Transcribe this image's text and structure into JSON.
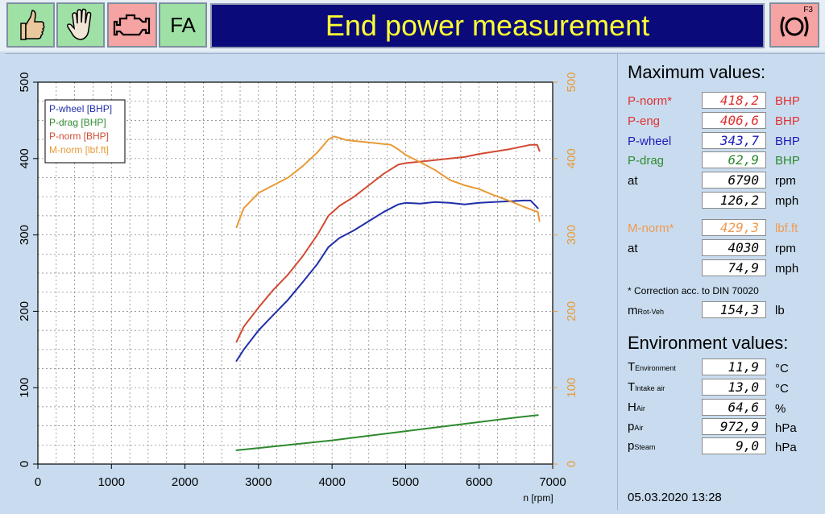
{
  "toolbar": {
    "buttons": [
      {
        "name": "thumbs-up-button",
        "icon": "thumbs-up-icon"
      },
      {
        "name": "hand-stop-button",
        "icon": "hand-icon"
      },
      {
        "name": "engine-button",
        "icon": "engine-icon"
      },
      {
        "name": "fa-button",
        "label": "FA"
      }
    ],
    "title": "End power measurement",
    "f3_label": "F3",
    "f3_icon": "brake-disc-icon",
    "colors": {
      "green_button": "#9fe1a5",
      "red_button": "#f6a3a3",
      "title_bg": "#0a0a7a",
      "title_fg": "#ffff33"
    }
  },
  "chart_data": {
    "type": "line",
    "xlabel": "n [rpm]",
    "xlim": [
      0,
      7000
    ],
    "ylim": [
      0,
      500
    ],
    "y2lim": [
      0,
      500
    ],
    "x_ticks": [
      "0",
      "1000",
      "2000",
      "3000",
      "4000",
      "5000",
      "6000",
      "7000"
    ],
    "y_ticks": [
      "0",
      "100",
      "200",
      "300",
      "400",
      "500"
    ],
    "y2_ticks": [
      "0",
      "100",
      "200",
      "300",
      "400",
      "500"
    ],
    "grid": true,
    "legend_position": "top-left",
    "series": [
      {
        "name": "P-wheel [BHP]",
        "color": "#1f2fa8",
        "axis": "left",
        "x": [
          2700,
          2800,
          3000,
          3200,
          3400,
          3600,
          3800,
          3950,
          4100,
          4300,
          4500,
          4700,
          4900,
          5000,
          5200,
          5400,
          5600,
          5800,
          6000,
          6200,
          6400,
          6600,
          6700,
          6800
        ],
        "y": [
          135,
          150,
          175,
          195,
          215,
          238,
          262,
          284,
          296,
          306,
          318,
          330,
          340,
          342,
          341,
          343,
          342,
          340,
          342,
          343,
          344,
          345,
          345,
          335
        ]
      },
      {
        "name": "P-drag [BHP]",
        "color": "#2e8a2e",
        "axis": "left",
        "x": [
          2700,
          3000,
          3500,
          4000,
          4500,
          5000,
          5500,
          6000,
          6500,
          6800
        ],
        "y": [
          18,
          21,
          26,
          31,
          37,
          43,
          49,
          55,
          61,
          64
        ]
      },
      {
        "name": "P-norm [BHP]",
        "color": "#d24a32",
        "axis": "left",
        "x": [
          2700,
          2800,
          3000,
          3200,
          3400,
          3600,
          3800,
          3950,
          4100,
          4300,
          4500,
          4700,
          4900,
          5000,
          5200,
          5400,
          5600,
          5800,
          6000,
          6200,
          6400,
          6600,
          6700,
          6790,
          6820
        ],
        "y": [
          160,
          180,
          205,
          228,
          248,
          272,
          300,
          325,
          338,
          350,
          365,
          380,
          392,
          394,
          396,
          398,
          400,
          402,
          406,
          409,
          412,
          416,
          418,
          418,
          410
        ]
      },
      {
        "name": "M-norm [lbf.ft]",
        "color": "#e89a38",
        "axis": "right",
        "x": [
          2700,
          2800,
          3000,
          3200,
          3400,
          3600,
          3800,
          3950,
          4030,
          4200,
          4400,
          4600,
          4800,
          4900,
          5000,
          5200,
          5400,
          5600,
          5800,
          6000,
          6200,
          6400,
          6600,
          6800,
          6820
        ],
        "y": [
          310,
          335,
          355,
          365,
          375,
          390,
          408,
          425,
          429,
          424,
          422,
          420,
          418,
          412,
          405,
          395,
          385,
          372,
          365,
          360,
          352,
          345,
          337,
          330,
          318
        ]
      }
    ]
  },
  "maximum": {
    "header": "Maximum values:",
    "rows": [
      {
        "label": "P-norm*",
        "value": "418,2",
        "unit": "BHP",
        "color": "#e03030"
      },
      {
        "label": "P-eng",
        "value": "406,6",
        "unit": "BHP",
        "color": "#e03030"
      },
      {
        "label": "P-wheel",
        "value": "343,7",
        "unit": "BHP",
        "color": "#1a1ab8"
      },
      {
        "label": "P-drag",
        "value": "62,9",
        "unit": "BHP",
        "color": "#2e8a2e"
      },
      {
        "label": "at",
        "value": "6790",
        "unit": "rpm",
        "color": "#000000"
      },
      {
        "label": "",
        "value": "126,2",
        "unit": "mph",
        "color": "#000000"
      },
      {
        "label": "M-norm*",
        "value": "429,3",
        "unit": "lbf.ft",
        "color": "#f09a50"
      },
      {
        "label": "at",
        "value": "4030",
        "unit": "rpm",
        "color": "#000000"
      },
      {
        "label": "",
        "value": "74,9",
        "unit": "mph",
        "color": "#000000"
      }
    ],
    "note": "* Correction acc. to DIN 70020",
    "mrot": {
      "label": "m",
      "sub": "Rot-Veh",
      "value": "154,3",
      "unit": "lb"
    }
  },
  "environment": {
    "header": "Environment values:",
    "rows": [
      {
        "label": "T",
        "sub": "Environment",
        "value": "11,9",
        "unit": "°C"
      },
      {
        "label": "T",
        "sub": "Intake air",
        "value": "13,0",
        "unit": "°C"
      },
      {
        "label": "H",
        "sub": "Air",
        "value": "64,6",
        "unit": "%"
      },
      {
        "label": "p",
        "sub": "Air",
        "value": "972,9",
        "unit": "hPa"
      },
      {
        "label": "p",
        "sub": "Steam",
        "value": "9,0",
        "unit": "hPa"
      }
    ]
  },
  "datetime": "05.03.2020   13:28"
}
